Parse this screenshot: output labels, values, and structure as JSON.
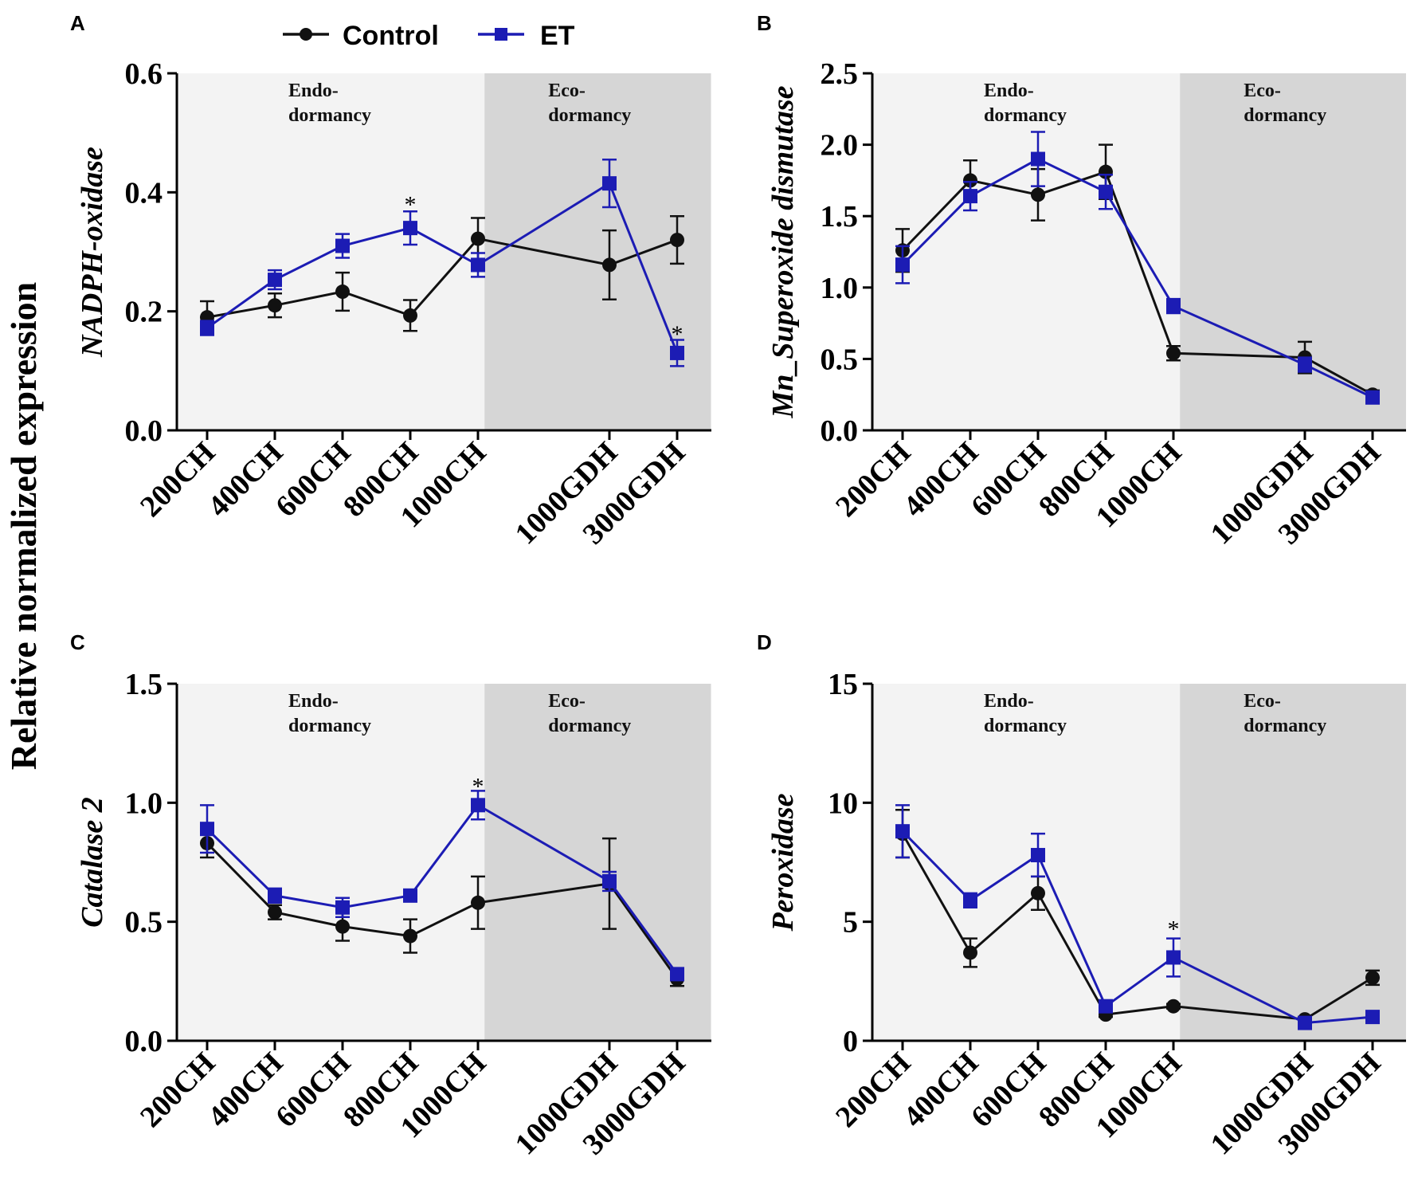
{
  "shared_ylabel": "Relative normalized expression",
  "legend": [
    {
      "name": "Control",
      "color": "#111111",
      "marker": "circle"
    },
    {
      "name": "ET",
      "color": "#1c1cb4",
      "marker": "square"
    }
  ],
  "colors": {
    "control": "#111111",
    "et": "#1c1cb4",
    "endo_bg": "#f3f3f3",
    "eco_bg": "#d6d6d6"
  },
  "chart_data": [
    {
      "panel": "A",
      "type": "line",
      "ylabel": "NADPH-oxidase",
      "ylim": [
        0,
        0.6
      ],
      "yticks": [
        "0.0",
        "0.2",
        "0.4",
        "0.6"
      ],
      "categories": [
        "200CH",
        "400CH",
        "600CH",
        "800CH",
        "1000CH",
        "1000GDH",
        "3000GDH"
      ],
      "x": [
        1,
        2,
        3,
        4,
        5,
        7,
        8
      ],
      "regions": [
        {
          "label1": "Endo-",
          "label2": "dormancy",
          "x_from": 0.5,
          "x_to": 5.1
        },
        {
          "label1": "Eco-",
          "label2": "dormancy",
          "x_from": 5.1,
          "x_to": 8.5
        }
      ],
      "series": [
        {
          "name": "Control",
          "values": [
            0.19,
            0.21,
            0.233,
            0.193,
            0.322,
            0.278,
            0.32
          ],
          "errors": [
            0.027,
            0.02,
            0.032,
            0.026,
            0.035,
            0.058,
            0.04
          ]
        },
        {
          "name": "ET",
          "values": [
            0.172,
            0.253,
            0.31,
            0.34,
            0.278,
            0.415,
            0.13
          ],
          "errors": [
            0.012,
            0.016,
            0.02,
            0.028,
            0.02,
            0.04,
            0.022
          ]
        }
      ],
      "annotations": [
        {
          "text": "*",
          "x": 4,
          "y": 0.38
        },
        {
          "text": "*",
          "x": 8,
          "y": 0.162
        }
      ]
    },
    {
      "panel": "B",
      "type": "line",
      "ylabel": "Mn_Superoxide dismutase",
      "ylim": [
        0,
        2.5
      ],
      "yticks": [
        "0.0",
        "0.5",
        "1.0",
        "1.5",
        "2.0",
        "2.5"
      ],
      "categories": [
        "200CH",
        "400CH",
        "600CH",
        "800CH",
        "1000CH",
        "1000GDH",
        "3000GDH"
      ],
      "x": [
        1,
        2,
        3,
        4,
        5,
        7,
        8
      ],
      "regions": [
        {
          "label1": "Endo-",
          "label2": "dormancy",
          "x_from": 0.5,
          "x_to": 5.1
        },
        {
          "label1": "Eco-",
          "label2": "dormancy",
          "x_from": 5.1,
          "x_to": 8.5
        }
      ],
      "series": [
        {
          "name": "Control",
          "values": [
            1.26,
            1.75,
            1.65,
            1.81,
            0.54,
            0.51,
            0.25
          ],
          "errors": [
            0.15,
            0.14,
            0.18,
            0.19,
            0.05,
            0.11,
            0.03
          ]
        },
        {
          "name": "ET",
          "values": [
            1.16,
            1.64,
            1.9,
            1.67,
            0.87,
            0.46,
            0.23
          ],
          "errors": [
            0.13,
            0.1,
            0.19,
            0.12,
            0.05,
            0.05,
            0.03
          ]
        }
      ],
      "annotations": []
    },
    {
      "panel": "C",
      "type": "line",
      "ylabel": "Catalase 2",
      "ylim": [
        0,
        1.5
      ],
      "yticks": [
        "0.0",
        "0.5",
        "1.0",
        "1.5"
      ],
      "categories": [
        "200CH",
        "400CH",
        "600CH",
        "800CH",
        "1000CH",
        "1000GDH",
        "3000GDH"
      ],
      "x": [
        1,
        2,
        3,
        4,
        5,
        7,
        8
      ],
      "regions": [
        {
          "label1": "Endo-",
          "label2": "dormancy",
          "x_from": 0.5,
          "x_to": 5.1
        },
        {
          "label1": "Eco-",
          "label2": "dormancy",
          "x_from": 5.1,
          "x_to": 8.5
        }
      ],
      "series": [
        {
          "name": "Control",
          "values": [
            0.83,
            0.54,
            0.48,
            0.44,
            0.58,
            0.66,
            0.26
          ],
          "errors": [
            0.06,
            0.03,
            0.06,
            0.07,
            0.11,
            0.19,
            0.03
          ]
        },
        {
          "name": "ET",
          "values": [
            0.89,
            0.61,
            0.56,
            0.61,
            0.99,
            0.67,
            0.28
          ],
          "errors": [
            0.1,
            0.03,
            0.04,
            0.02,
            0.06,
            0.04,
            0.02
          ]
        }
      ],
      "annotations": [
        {
          "text": "*",
          "x": 5,
          "y": 1.07
        }
      ]
    },
    {
      "panel": "D",
      "type": "line",
      "ylabel": "Peroxidase",
      "ylim": [
        0,
        15
      ],
      "yticks": [
        "0",
        "5",
        "10",
        "15"
      ],
      "categories": [
        "200CH",
        "400CH",
        "600CH",
        "800CH",
        "1000CH",
        "1000GDH",
        "3000GDH"
      ],
      "x": [
        1,
        2,
        3,
        4,
        5,
        7,
        8
      ],
      "regions": [
        {
          "label1": "Endo-",
          "label2": "dormancy",
          "x_from": 0.5,
          "x_to": 5.1
        },
        {
          "label1": "Eco-",
          "label2": "dormancy",
          "x_from": 5.1,
          "x_to": 8.5
        }
      ],
      "series": [
        {
          "name": "Control",
          "values": [
            8.7,
            3.7,
            6.2,
            1.1,
            1.45,
            0.9,
            2.65
          ],
          "errors": [
            1.0,
            0.6,
            0.7,
            0.1,
            0.1,
            0.1,
            0.3
          ]
        },
        {
          "name": "ET",
          "values": [
            8.8,
            5.9,
            7.8,
            1.45,
            3.5,
            0.75,
            1.0
          ],
          "errors": [
            1.1,
            0.3,
            0.9,
            0.1,
            0.8,
            0.1,
            0.1
          ]
        }
      ],
      "annotations": [
        {
          "text": "*",
          "x": 5,
          "y": 4.7
        }
      ]
    }
  ]
}
